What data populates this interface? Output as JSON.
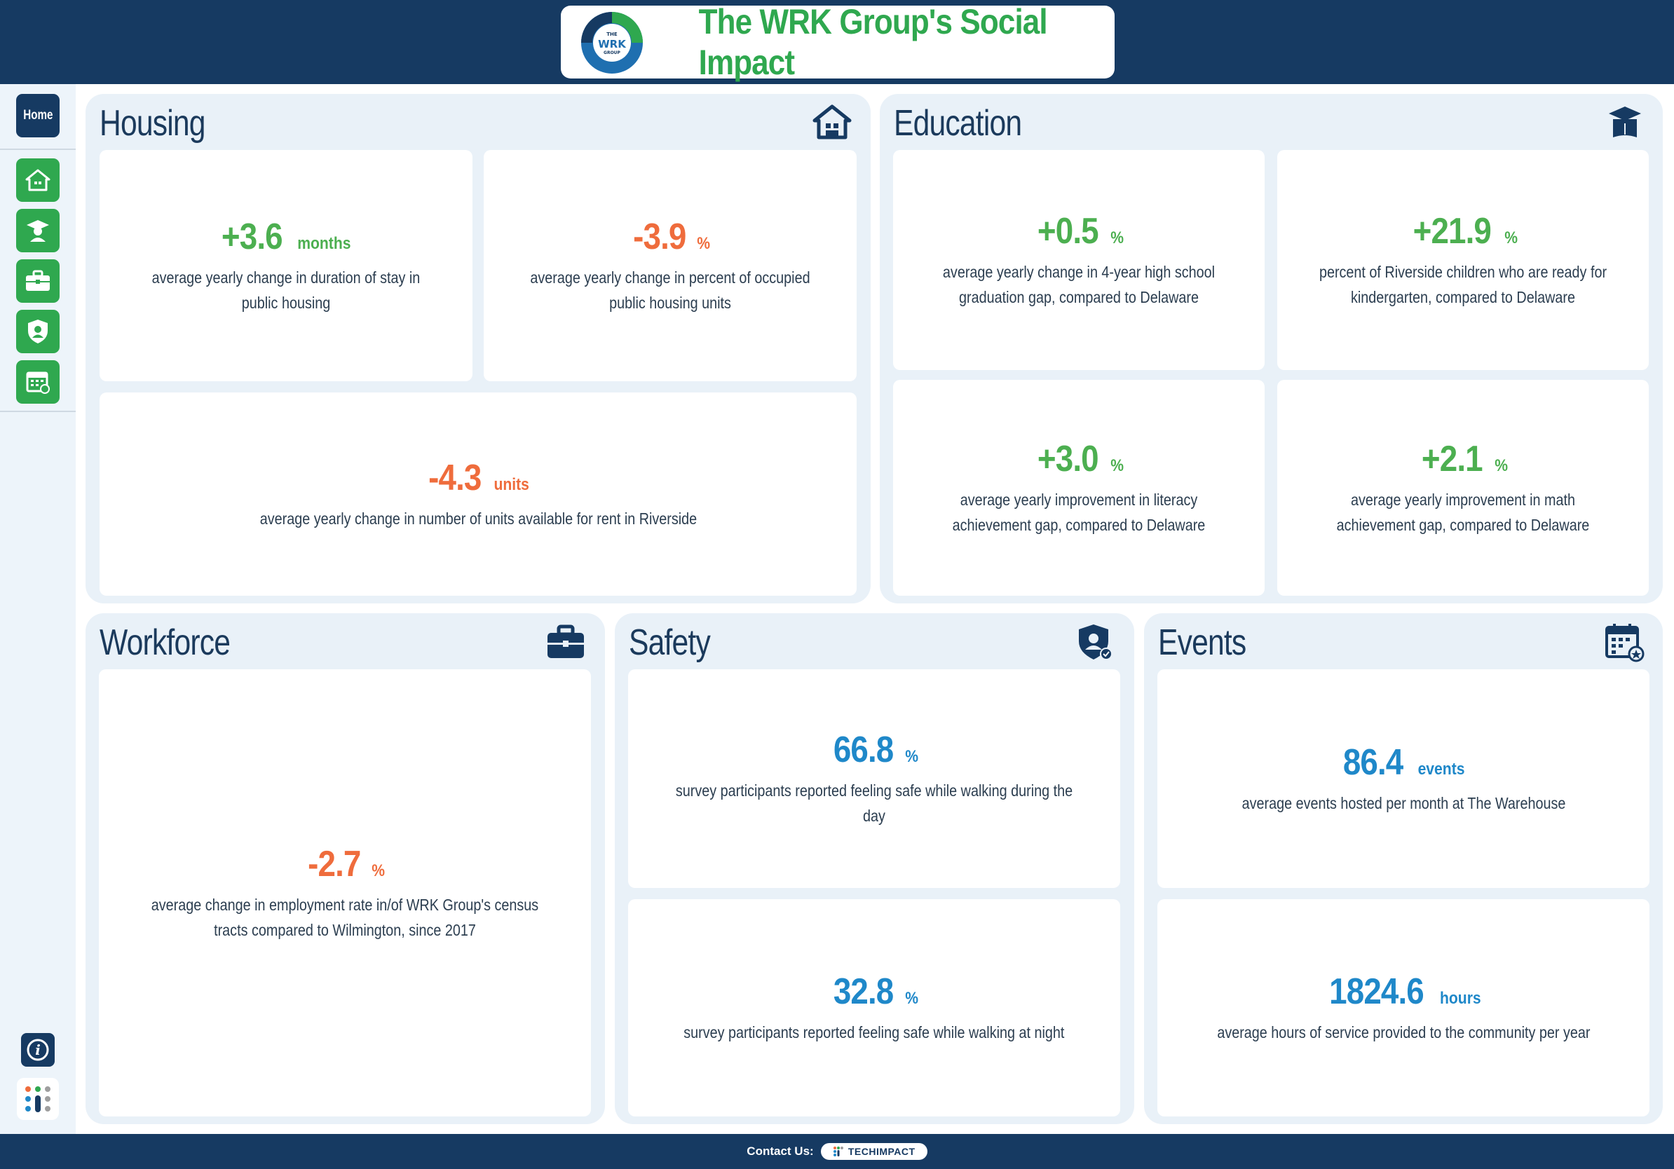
{
  "header": {
    "title": "The WRK Group's Social Impact",
    "logo_text": {
      "top": "THE",
      "mid": "WRK",
      "bottom": "GROUP"
    }
  },
  "sidebar": {
    "home_label": "Home",
    "nav": [
      {
        "icon": "house-icon"
      },
      {
        "icon": "graduate-icon"
      },
      {
        "icon": "briefcase-icon"
      },
      {
        "icon": "shield-user-icon"
      },
      {
        "icon": "calendar-icon"
      }
    ],
    "info_icon": "info-icon",
    "info_label": "i"
  },
  "colors": {
    "navy": "#163a62",
    "green": "#4caf50",
    "orange": "#ef6c3c",
    "blue": "#1f88c9",
    "panel_bg": "#e9f1f8"
  },
  "housing": {
    "title": "Housing",
    "cards": [
      {
        "value": "+3.6",
        "unit": "months",
        "desc": "average yearly change in duration of stay in public housing"
      },
      {
        "value": "-3.9",
        "unit": "%",
        "desc": "average yearly change in percent of occupied public housing units"
      },
      {
        "value": "-4.3",
        "unit": "units",
        "desc": "average yearly change in number of units available for rent in Riverside"
      }
    ]
  },
  "education": {
    "title": "Education",
    "cards": [
      {
        "value": "+0.5",
        "unit": "%",
        "desc": "average yearly change in 4-year high school graduation gap, compared to Delaware"
      },
      {
        "value": "+21.9",
        "unit": "%",
        "desc": "percent of Riverside children who are ready for kindergarten, compared to Delaware"
      },
      {
        "value": "+3.0",
        "unit": "%",
        "desc": "average yearly improvement in literacy achievement gap, compared to Delaware"
      },
      {
        "value": "+2.1",
        "unit": "%",
        "desc": "average yearly improvement in math achievement gap, compared to Delaware"
      }
    ]
  },
  "workforce": {
    "title": "Workforce",
    "cards": [
      {
        "value": "-2.7",
        "unit": "%",
        "desc": "average change in employment rate in/of WRK Group's census tracts compared to Wilmington, since 2017"
      }
    ]
  },
  "safety": {
    "title": "Safety",
    "cards": [
      {
        "value": "66.8",
        "unit": "%",
        "desc": "survey participants reported feeling safe while walking during the day"
      },
      {
        "value": "32.8",
        "unit": "%",
        "desc": "survey participants reported feeling safe while walking at night"
      }
    ]
  },
  "events": {
    "title": "Events",
    "cards": [
      {
        "value": "86.4",
        "unit": "events",
        "desc": "average events hosted per month at The Warehouse"
      },
      {
        "value": "1824.6",
        "unit": "hours",
        "desc": "average hours of service provided to the community per year"
      }
    ]
  },
  "footer": {
    "contact_label": "Contact Us:",
    "partner": "TECHIMPACT"
  }
}
